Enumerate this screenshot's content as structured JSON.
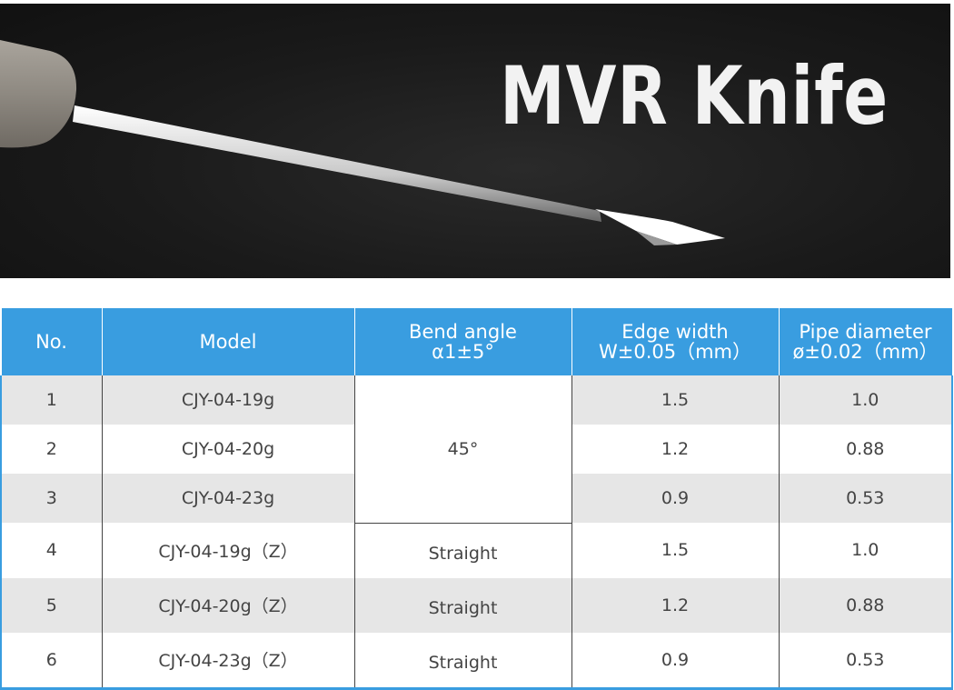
{
  "banner": {
    "title": "MVR Knife",
    "image": "mvr-knife-product-photo"
  },
  "table": {
    "headers": [
      {
        "line1": "No.",
        "line2": ""
      },
      {
        "line1": "Model",
        "line2": ""
      },
      {
        "line1": "Bend angle",
        "line2": "α1±5°"
      },
      {
        "line1": "Edge width",
        "line2": "W±0.05（mm）"
      },
      {
        "line1": "Pipe diameter",
        "line2": "ø±0.02（mm）"
      }
    ],
    "rows": [
      {
        "no": "1",
        "model": "CJY-04-19g",
        "bend": "45°",
        "edge": "1.5",
        "pipe": "1.0"
      },
      {
        "no": "2",
        "model": "CJY-04-20g",
        "bend": "",
        "edge": "1.2",
        "pipe": "0.88"
      },
      {
        "no": "3",
        "model": "CJY-04-23g",
        "bend": "",
        "edge": "0.9",
        "pipe": "0.53"
      },
      {
        "no": "4",
        "model": "CJY-04-19g（Z）",
        "bend": "Straight",
        "edge": "1.5",
        "pipe": "1.0"
      },
      {
        "no": "5",
        "model": "CJY-04-20g（Z）",
        "bend": "Straight",
        "edge": "1.2",
        "pipe": "0.88"
      },
      {
        "no": "6",
        "model": "CJY-04-23g（Z）",
        "bend": "Straight",
        "edge": "0.9",
        "pipe": "0.53"
      }
    ]
  },
  "colors": {
    "header_blue": "#399de0",
    "banner_dark": "#1a1a1a",
    "row_gray": "#e6e6e6"
  }
}
